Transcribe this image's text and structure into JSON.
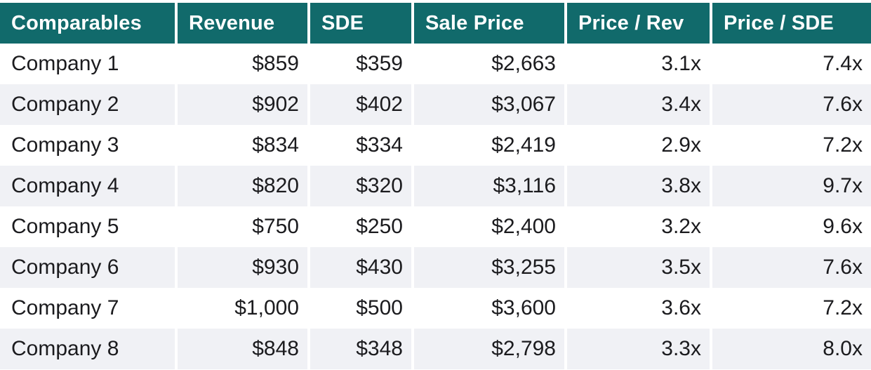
{
  "colors": {
    "header_bg": "#116A6B",
    "header_text": "#FFFFFF",
    "row_bg": "#FFFFFF",
    "row_alt_bg": "#F0F1F5",
    "body_text": "#1B1B1E",
    "divider": "#FFFFFF"
  },
  "table": {
    "columns": [
      {
        "label": "Comparables",
        "align": "left"
      },
      {
        "label": "Revenue",
        "align": "right"
      },
      {
        "label": "SDE",
        "align": "right"
      },
      {
        "label": "Sale Price",
        "align": "right"
      },
      {
        "label": "Price / Rev",
        "align": "right"
      },
      {
        "label": "Price / SDE",
        "align": "right"
      }
    ],
    "rows": [
      {
        "cells": [
          "Company 1",
          "$859",
          "$359",
          "$2,663",
          "3.1x",
          "7.4x"
        ]
      },
      {
        "cells": [
          "Company 2",
          "$902",
          "$402",
          "$3,067",
          "3.4x",
          "7.6x"
        ]
      },
      {
        "cells": [
          "Company 3",
          "$834",
          "$334",
          "$2,419",
          "2.9x",
          "7.2x"
        ]
      },
      {
        "cells": [
          "Company 4",
          "$820",
          "$320",
          "$3,116",
          "3.8x",
          "9.7x"
        ]
      },
      {
        "cells": [
          "Company 5",
          "$750",
          "$250",
          "$2,400",
          "3.2x",
          "9.6x"
        ]
      },
      {
        "cells": [
          "Company 6",
          "$930",
          "$430",
          "$3,255",
          "3.5x",
          "7.6x"
        ]
      },
      {
        "cells": [
          "Company 7",
          "$1,000",
          "$500",
          "$3,600",
          "3.6x",
          "7.2x"
        ]
      },
      {
        "cells": [
          "Company 8",
          "$848",
          "$348",
          "$2,798",
          "3.3x",
          "8.0x"
        ]
      }
    ]
  },
  "chart_data": {
    "type": "table",
    "title": "",
    "columns": [
      "Comparables",
      "Revenue",
      "SDE",
      "Sale Price",
      "Price / Rev",
      "Price / SDE"
    ],
    "rows": [
      [
        "Company 1",
        859,
        359,
        2663,
        3.1,
        7.4
      ],
      [
        "Company 2",
        902,
        402,
        3067,
        3.4,
        7.6
      ],
      [
        "Company 3",
        834,
        334,
        2419,
        2.9,
        7.2
      ],
      [
        "Company 4",
        820,
        320,
        3116,
        3.8,
        9.7
      ],
      [
        "Company 5",
        750,
        250,
        2400,
        3.2,
        9.6
      ],
      [
        "Company 6",
        930,
        430,
        3255,
        3.5,
        7.6
      ],
      [
        "Company 7",
        1000,
        500,
        3600,
        3.6,
        7.2
      ],
      [
        "Company 8",
        848,
        348,
        2798,
        3.3,
        8.0
      ]
    ],
    "units": {
      "Revenue": "USD thousands",
      "SDE": "USD thousands",
      "Sale Price": "USD thousands",
      "Price / Rev": "multiple",
      "Price / SDE": "multiple"
    },
    "layout": {
      "zebra_striping": true,
      "header_style": "teal-bold-white",
      "numeric_alignment": "right"
    }
  }
}
